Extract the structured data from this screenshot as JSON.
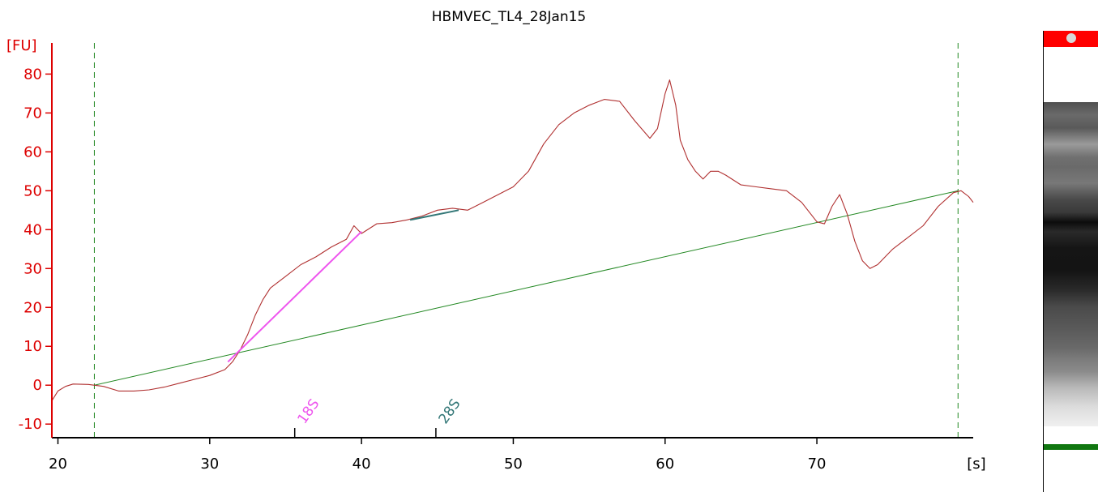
{
  "chart_data": {
    "type": "line",
    "title": "HBMVEC_TL4_28Jan15",
    "ylabel": "[FU]",
    "xlabel": "[s]",
    "xlim": [
      19.6,
      80.3
    ],
    "ylim": [
      -13.5,
      88
    ],
    "x_ticks": [
      20,
      30,
      40,
      50,
      60,
      70
    ],
    "y_ticks": [
      -10,
      0,
      10,
      20,
      30,
      40,
      50,
      60,
      70,
      80
    ],
    "x_tick_labels": [
      "20",
      "30",
      "40",
      "50",
      "60",
      "70"
    ],
    "y_tick_labels": [
      "-10",
      "0",
      "10",
      "20",
      "30",
      "40",
      "50",
      "60",
      "70",
      "80"
    ],
    "colors": {
      "trace": "#b03030",
      "axes": "#000000",
      "y_axis": "#dd0000",
      "baseline": "#228822",
      "markers": "#228822",
      "peak_18s": "#ee55ee",
      "peak_28s": "#337777"
    },
    "series": [
      {
        "values": [
          [
            19.6,
            -4
          ],
          [
            20.0,
            -1.5
          ],
          [
            20.5,
            -0.3
          ],
          [
            21.0,
            0.3
          ],
          [
            22.0,
            0.2
          ],
          [
            23.0,
            -0.3
          ],
          [
            24.0,
            -1.5
          ],
          [
            25.0,
            -1.5
          ],
          [
            26.0,
            -1.2
          ],
          [
            27.0,
            -0.5
          ],
          [
            28.0,
            0.5
          ],
          [
            29.0,
            1.5
          ],
          [
            30.0,
            2.5
          ],
          [
            31.0,
            4.0
          ],
          [
            31.5,
            6.0
          ],
          [
            32.0,
            9.0
          ],
          [
            32.5,
            13.0
          ],
          [
            33.0,
            18.0
          ],
          [
            33.5,
            22.0
          ],
          [
            34.0,
            25.0
          ],
          [
            35.0,
            28.0
          ],
          [
            36.0,
            31.0
          ],
          [
            37.0,
            33.0
          ],
          [
            38.0,
            35.5
          ],
          [
            39.0,
            37.5
          ],
          [
            39.5,
            41.0
          ],
          [
            40.0,
            39.0
          ],
          [
            41.0,
            41.5
          ],
          [
            42.0,
            41.8
          ],
          [
            43.0,
            42.5
          ],
          [
            44.0,
            43.5
          ],
          [
            45.0,
            45.0
          ],
          [
            46.0,
            45.5
          ],
          [
            47.0,
            45.0
          ],
          [
            48.0,
            47.0
          ],
          [
            49.0,
            49.0
          ],
          [
            50.0,
            51.0
          ],
          [
            51.0,
            55.0
          ],
          [
            52.0,
            62.0
          ],
          [
            53.0,
            67.0
          ],
          [
            54.0,
            70.0
          ],
          [
            55.0,
            72.0
          ],
          [
            56.0,
            73.5
          ],
          [
            57.0,
            73.0
          ],
          [
            58.0,
            68.0
          ],
          [
            59.0,
            63.5
          ],
          [
            59.5,
            66.0
          ],
          [
            60.0,
            75.0
          ],
          [
            60.3,
            78.5
          ],
          [
            60.7,
            72.0
          ],
          [
            61.0,
            63.0
          ],
          [
            61.5,
            58.0
          ],
          [
            62.0,
            55.0
          ],
          [
            62.5,
            53.0
          ],
          [
            63.0,
            55.0
          ],
          [
            63.5,
            55.0
          ],
          [
            64.0,
            54.0
          ],
          [
            65.0,
            51.5
          ],
          [
            66.0,
            51.0
          ],
          [
            67.0,
            50.5
          ],
          [
            68.0,
            50.0
          ],
          [
            69.0,
            47.0
          ],
          [
            70.0,
            42.0
          ],
          [
            70.5,
            41.5
          ],
          [
            71.0,
            46.0
          ],
          [
            71.5,
            49.0
          ],
          [
            72.0,
            44.0
          ],
          [
            72.5,
            37.0
          ],
          [
            73.0,
            32.0
          ],
          [
            73.5,
            30.0
          ],
          [
            74.0,
            31.0
          ],
          [
            75.0,
            35.0
          ],
          [
            76.0,
            38.0
          ],
          [
            77.0,
            41.0
          ],
          [
            78.0,
            46.0
          ],
          [
            79.0,
            49.5
          ],
          [
            79.5,
            50.0
          ],
          [
            80.0,
            48.5
          ],
          [
            80.3,
            47.0
          ]
        ]
      }
    ],
    "baseline": {
      "x": [
        22.4,
        79.3
      ],
      "y": [
        0.0,
        50.0
      ]
    },
    "region_markers_x": [
      22.4,
      79.3
    ],
    "peaks": [
      {
        "label": "18S",
        "x": 35.6,
        "fit_x": [
          31.2,
          40.0
        ],
        "fit_y": [
          6.0,
          39.5
        ]
      },
      {
        "label": "28S",
        "x": 44.9,
        "fit_x": [
          43.2,
          46.4
        ],
        "fit_y": [
          42.5,
          45.0
        ]
      }
    ]
  }
}
